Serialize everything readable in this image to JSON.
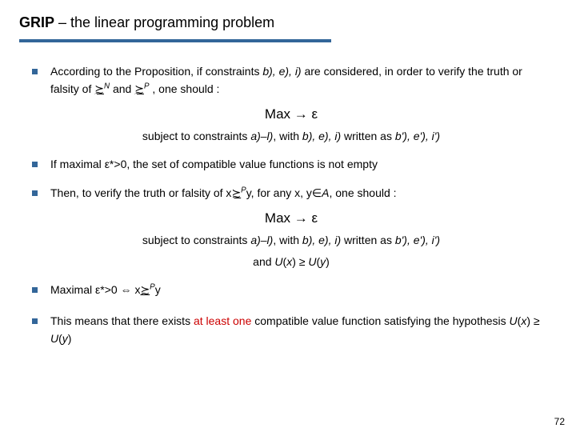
{
  "title_bold": "GRIP",
  "title_rest": " – the linear programming problem",
  "bullets": {
    "b1a": "According to the Proposition, if constraints ",
    "b1_bei": "b), e), i)",
    "b1b": " are considered, in order to verify the truth or falsity of ",
    "b1_rel1": "≿",
    "b1_sup1": "N",
    "b1c": " and ",
    "b1_rel2": "≿",
    "b1_sup2": "P",
    "b1d": " , one should :",
    "b2a": "If maximal ",
    "b2_eps": "ε*",
    "b2b": ">0, the set of compatible value functions is not empty",
    "b3a": "Then, to verify the truth or falsity of x",
    "b3_rel": "≿",
    "b3_sup": "P",
    "b3b": "y, for any x, y∈",
    "b3_A": "A",
    "b3c": ", one should :",
    "b4a": "Maximal ε*>0 ⇔ x",
    "b4_rel": "≿",
    "b4_sup": "P",
    "b4b": "y",
    "b5a": "This means that there exists ",
    "b5_red": "at least one",
    "b5b": " compatible value function satisfying the hypothesis  ",
    "b5_U1": "U",
    "b5_p1": "(",
    "b5_x": "x",
    "b5_p2": ") ≥ ",
    "b5_U2": "U",
    "b5_p3": "(",
    "b5_y": "y",
    "b5_p4": ")"
  },
  "max1": "Max  →  ε",
  "sub1a": "subject to constraints ",
  "sub1_al": "a)–l)",
  "sub1b": ", with ",
  "sub1_bei": "b), e), i)",
  "sub1c": " written as ",
  "sub1_bei2": "b'), e'), i')",
  "max2": "Max  →  ε",
  "sub2a": "subject to constraints ",
  "sub2_al": "a)–l)",
  "sub2b": ", with ",
  "sub2_bei": "b), e), i)",
  "sub2c": " written as ",
  "sub2_bei2": "b'), e'), i')",
  "and_a": "and  ",
  "and_U1": "U",
  "and_p1": "(",
  "and_x": "x",
  "and_p2": ") ≥ ",
  "and_U2": "U",
  "and_p3": "(",
  "and_y": "y",
  "and_p4": ")",
  "page": "72",
  "colors": {
    "accent": "#336699",
    "red": "#cc0000"
  }
}
